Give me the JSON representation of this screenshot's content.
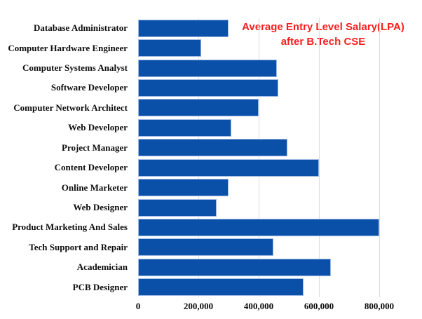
{
  "title": {
    "line1": "Average Entry Level Salary(LPA)",
    "line2": "after B.Tech CSE",
    "color": "#fa1e1e"
  },
  "chart_data": {
    "type": "bar",
    "orientation": "horizontal",
    "title": "Average Entry Level Salary(LPA) after B.Tech CSE",
    "xlabel": "",
    "ylabel": "",
    "categories": [
      "Database Administrator",
      "Computer Hardware Engineer",
      "Computer Systems Analyst",
      "Software Developer",
      "Computer Network Architect",
      "Web Developer",
      "Project Manager",
      "Content Developer",
      "Online Marketer",
      "Web Designer",
      "Product Marketing And Sales",
      "Tech Support and Repair",
      "Academician",
      "PCB Designer"
    ],
    "values": [
      300000,
      210000,
      460000,
      465000,
      400000,
      310000,
      495000,
      600000,
      300000,
      260000,
      800000,
      450000,
      640000,
      550000
    ],
    "x_ticks": [
      "0",
      "200,000",
      "400,000",
      "600,000",
      "800,000"
    ],
    "x_tick_values": [
      0,
      200000,
      400000,
      600000,
      800000
    ],
    "xlim": [
      0,
      925600
    ],
    "grid": "vertical-gridlines",
    "legend": "none",
    "bar_color": "#0a4fa8",
    "bar_border_color": "#9db9e2",
    "gridline_color": "#dcdcdc",
    "label_color": "#0d0d0d"
  }
}
